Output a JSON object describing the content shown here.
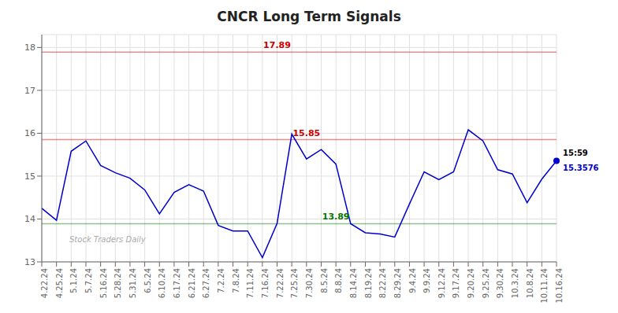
{
  "chart_data": {
    "type": "line",
    "title": "CNCR Long Term Signals",
    "categories": [
      "4.22.24",
      "4.25.24",
      "5.1.24",
      "5.7.24",
      "5.16.24",
      "5.28.24",
      "5.31.24",
      "6.5.24",
      "6.10.24",
      "6.17.24",
      "6.21.24",
      "6.27.24",
      "7.2.24",
      "7.8.24",
      "7.11.24",
      "7.16.24",
      "7.22.24",
      "7.25.24",
      "7.30.24",
      "8.5.24",
      "8.8.24",
      "8.14.24",
      "8.19.24",
      "8.22.24",
      "8.29.24",
      "9.4.24",
      "9.9.24",
      "9.12.24",
      "9.17.24",
      "9.20.24",
      "9.25.24",
      "9.30.24",
      "10.3.24",
      "10.8.24",
      "10.11.24",
      "10.16.24"
    ],
    "values": [
      14.25,
      13.97,
      15.58,
      15.82,
      15.25,
      15.08,
      14.95,
      14.68,
      14.12,
      14.62,
      14.8,
      14.65,
      13.85,
      13.72,
      13.72,
      13.1,
      13.9,
      15.98,
      15.4,
      15.62,
      15.28,
      13.89,
      13.68,
      13.65,
      13.58,
      14.35,
      15.1,
      14.92,
      15.1,
      16.08,
      15.82,
      15.15,
      15.05,
      14.38,
      14.93,
      15.3576
    ],
    "color": "#0000cc",
    "marker": "last",
    "ylim": [
      13.0,
      18.3
    ],
    "yticks": [
      13,
      14,
      15,
      16,
      17,
      18
    ],
    "grid": true,
    "reference_lines": [
      {
        "value": 17.89,
        "label": "17.89",
        "color": "#cc0000",
        "x": "7.22.24"
      },
      {
        "value": 15.85,
        "label": "15.85",
        "color": "#cc0000",
        "x": "7.30.24"
      },
      {
        "value": 13.89,
        "label": "13.89",
        "color": "#007700",
        "x": "8.8.24"
      }
    ],
    "annotations": [
      {
        "text": "15:59",
        "x": "10.16.24",
        "y": 15.3576,
        "color": "#000000"
      },
      {
        "text": "15.3576",
        "x": "10.16.24",
        "y": 15.3576,
        "color": "#0000cc"
      }
    ],
    "watermark": "Stock Traders Daily"
  }
}
